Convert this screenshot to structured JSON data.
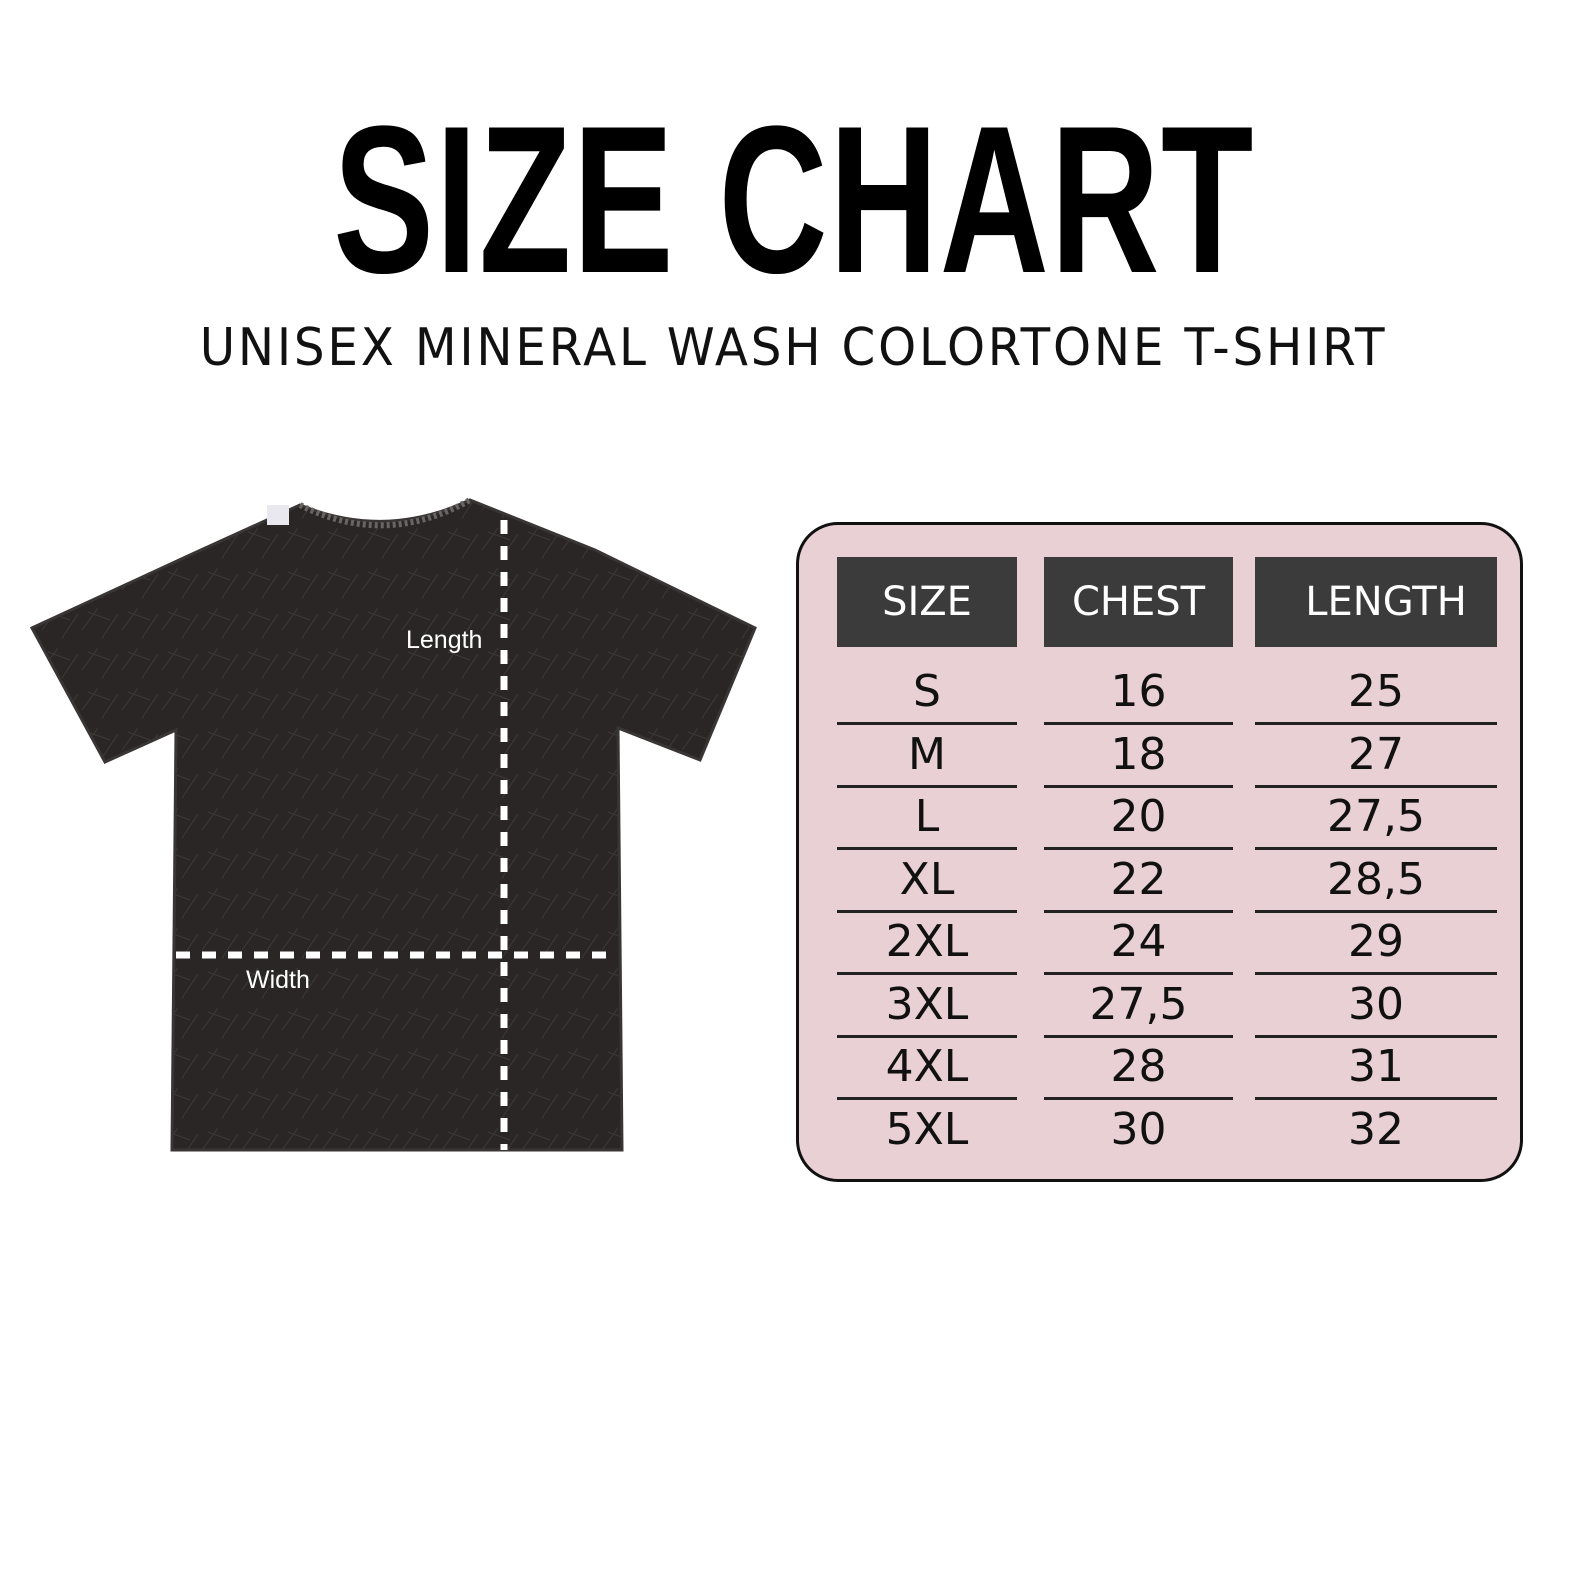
{
  "title": "SIZE CHART",
  "subtitle": "UNISEX MINERAL WASH COLORTONE T-SHIRT",
  "shirt": {
    "length_label": "Length",
    "width_label": "Width",
    "color": "#2a2626"
  },
  "table": {
    "background": "#e8d0d4",
    "header_color": "#3b3b3b",
    "headers": [
      "SIZE",
      "CHEST",
      "LENGTH"
    ],
    "rows": [
      [
        "S",
        "16",
        "25"
      ],
      [
        "M",
        "18",
        "27"
      ],
      [
        "L",
        "20",
        "27,5"
      ],
      [
        "XL",
        "22",
        "28,5"
      ],
      [
        "2XL",
        "24",
        "29"
      ],
      [
        "3XL",
        "27,5",
        "30"
      ],
      [
        "4XL",
        "28",
        "31"
      ],
      [
        "5XL",
        "30",
        "32"
      ]
    ]
  }
}
